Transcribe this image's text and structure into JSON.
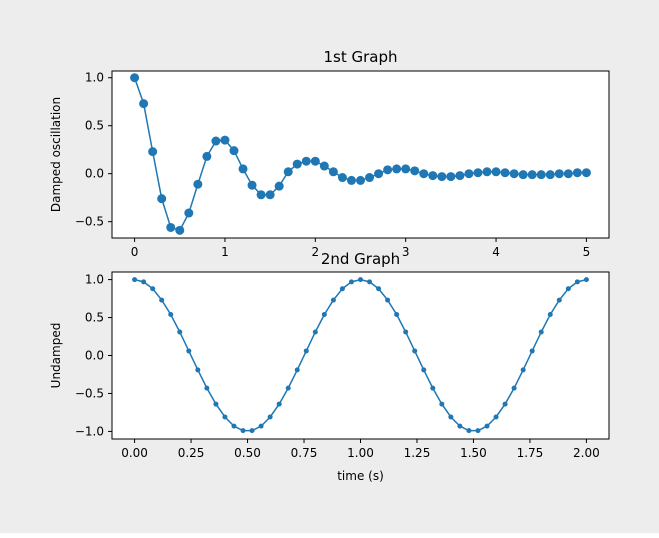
{
  "figure": {
    "background": "#ededed",
    "axes_background": "#ffffff"
  },
  "chart_data": [
    {
      "type": "line",
      "title": "1st Graph",
      "xlabel": "",
      "ylabel": "Damped oscillation",
      "xlim": [
        -0.25,
        5.25
      ],
      "ylim": [
        -0.67,
        1.07
      ],
      "xticks": [
        0,
        1,
        2,
        3,
        4,
        5
      ],
      "xtick_labels": [
        "0",
        "1",
        "2",
        "3",
        "4",
        "5"
      ],
      "yticks": [
        -0.5,
        0.0,
        0.5,
        1.0
      ],
      "ytick_labels": [
        "−0.5",
        "0.0",
        "0.5",
        "1.0"
      ],
      "grid": false,
      "marker": "circle-large",
      "color": "#1f77b4",
      "series": [
        {
          "x": [
            0.0,
            0.1,
            0.2,
            0.3,
            0.4,
            0.5,
            0.6,
            0.7,
            0.8,
            0.9,
            1.0,
            1.1,
            1.2,
            1.3,
            1.4,
            1.5,
            1.6,
            1.7,
            1.8,
            1.9,
            2.0,
            2.1,
            2.2,
            2.3,
            2.4,
            2.5,
            2.6,
            2.7,
            2.8,
            2.9,
            3.0,
            3.1,
            3.2,
            3.3,
            3.4,
            3.5,
            3.6,
            3.7,
            3.8,
            3.9,
            4.0,
            4.1,
            4.2,
            4.3,
            4.4,
            4.5,
            4.6,
            4.7,
            4.8,
            4.9,
            5.0
          ],
          "y": [
            1.0,
            0.73,
            0.23,
            -0.26,
            -0.56,
            -0.59,
            -0.41,
            -0.11,
            0.18,
            0.34,
            0.35,
            0.24,
            0.05,
            -0.12,
            -0.22,
            -0.22,
            -0.13,
            0.02,
            0.1,
            0.13,
            0.13,
            0.08,
            0.02,
            -0.04,
            -0.07,
            -0.07,
            -0.04,
            0.0,
            0.04,
            0.05,
            0.05,
            0.03,
            0.0,
            -0.02,
            -0.03,
            -0.03,
            -0.02,
            0.0,
            0.01,
            0.02,
            0.02,
            0.01,
            0.0,
            -0.01,
            -0.01,
            -0.01,
            -0.01,
            0.0,
            0.0,
            0.01,
            0.01
          ]
        }
      ]
    },
    {
      "type": "line",
      "title": "2nd Graph",
      "xlabel": "time (s)",
      "ylabel": "Undamped",
      "xlim": [
        -0.1,
        2.1
      ],
      "ylim": [
        -1.1,
        1.1
      ],
      "xticks": [
        0.0,
        0.25,
        0.5,
        0.75,
        1.0,
        1.25,
        1.5,
        1.75,
        2.0
      ],
      "xtick_labels": [
        "0.00",
        "0.25",
        "0.50",
        "0.75",
        "1.00",
        "1.25",
        "1.50",
        "1.75",
        "2.00"
      ],
      "yticks": [
        -1.0,
        -0.5,
        0.0,
        0.5,
        1.0
      ],
      "ytick_labels": [
        "−1.0",
        "−0.5",
        "0.0",
        "0.5",
        "1.0"
      ],
      "grid": false,
      "marker": "circle-small",
      "color": "#1f77b4",
      "series": [
        {
          "x": [
            0.0,
            0.04,
            0.08,
            0.12,
            0.16,
            0.2,
            0.24,
            0.28,
            0.32,
            0.36,
            0.4,
            0.44,
            0.48,
            0.52,
            0.56,
            0.6,
            0.64,
            0.68,
            0.72,
            0.76,
            0.8,
            0.84,
            0.88,
            0.92,
            0.96,
            1.0,
            1.04,
            1.08,
            1.12,
            1.16,
            1.2,
            1.24,
            1.28,
            1.32,
            1.36,
            1.4,
            1.44,
            1.48,
            1.52,
            1.56,
            1.6,
            1.64,
            1.68,
            1.72,
            1.76,
            1.8,
            1.84,
            1.88,
            1.92,
            1.96,
            2.0
          ],
          "y": [
            1.0,
            0.97,
            0.88,
            0.73,
            0.54,
            0.31,
            0.06,
            -0.19,
            -0.43,
            -0.64,
            -0.81,
            -0.93,
            -0.99,
            -0.99,
            -0.93,
            -0.81,
            -0.64,
            -0.43,
            -0.19,
            0.06,
            0.31,
            0.54,
            0.73,
            0.88,
            0.97,
            1.0,
            0.97,
            0.88,
            0.73,
            0.54,
            0.31,
            0.06,
            -0.19,
            -0.43,
            -0.64,
            -0.81,
            -0.93,
            -0.99,
            -0.99,
            -0.93,
            -0.81,
            -0.64,
            -0.43,
            -0.19,
            0.06,
            0.31,
            0.54,
            0.73,
            0.88,
            0.97,
            1.0
          ]
        }
      ]
    }
  ]
}
